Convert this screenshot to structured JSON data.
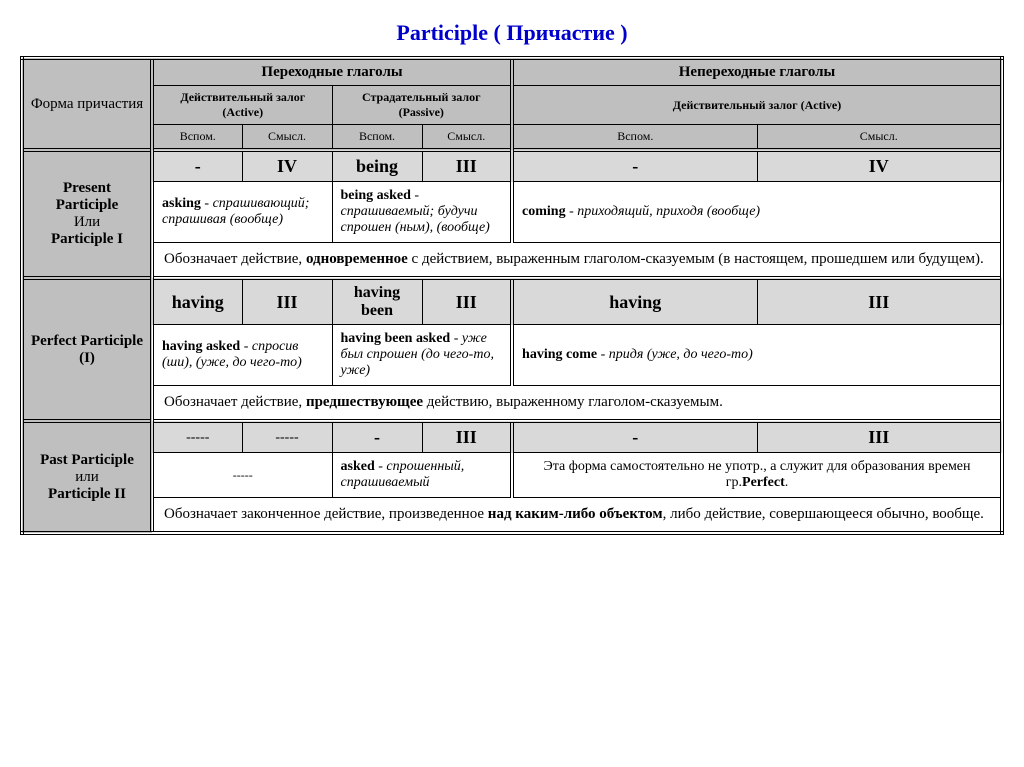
{
  "title": "Participle  ( Причастие )",
  "headers": {
    "form": "Форма причастия",
    "transitive": "Переходные глаголы",
    "intransitive": "Непереходные глаголы",
    "active": "Действительный залог (Active)",
    "passive": "Страдательный залог (Passive)",
    "active_intr": "Действительный залог (Active)",
    "aux": "Вспом.",
    "main": "Смысл."
  },
  "present": {
    "label1": "Present Participle",
    "label_or": "Или",
    "label2": "Participle I",
    "cells": [
      "-",
      "IV",
      "being",
      "III",
      "-",
      "IV"
    ],
    "ex1_b": "asking",
    "ex1_t": " - спрашивающий; спрашивая (вообще)",
    "ex2_b": "being asked",
    "ex2_t": " - спрашиваемый; будучи спрошен (ным), (вообще)",
    "ex3_b": "coming",
    "ex3_t": " - приходящий, приходя (вообще)",
    "note_a": "Обозначает действие, ",
    "note_b": "одновременное",
    "note_c": " с действием, выраженным глаголом-сказуемым (в настоящем, прошедшем или будущем)."
  },
  "perfect": {
    "label1": "Perfect Participle (I)",
    "cells": [
      "having",
      "III",
      "having been",
      "III",
      "having",
      "III"
    ],
    "ex1_b": "having asked",
    "ex1_t": " - спросив (ши), (уже, до чего-то)",
    "ex2_b": "having been asked",
    "ex2_t": " - уже был спрошен (до чего-то, уже)",
    "ex3_b": "having come",
    "ex3_t": " - придя (уже, до чего-то)",
    "note_a": "Обозначает действие, ",
    "note_b": "предшествующее",
    "note_c": " действию, выраженному глаголом-сказуемым."
  },
  "past": {
    "label1": "Past Participle",
    "label_or": "или",
    "label2": "Participle II",
    "cells": [
      "-----",
      "-----",
      "-",
      "III",
      "-",
      "III"
    ],
    "ex1": "-----",
    "ex2_b": "asked",
    "ex2_t": " - спрошенный, спрашиваемый",
    "ex3_a": "Эта форма самостоятельно не употр., а служит для образования времен гр.",
    "ex3_b": "Perfect",
    "note_a": "Обозначает законченное действие, произведенное ",
    "note_b": "над каким-либо объектом",
    "note_c": ", либо действие, совершающееся обычно, вообще."
  }
}
